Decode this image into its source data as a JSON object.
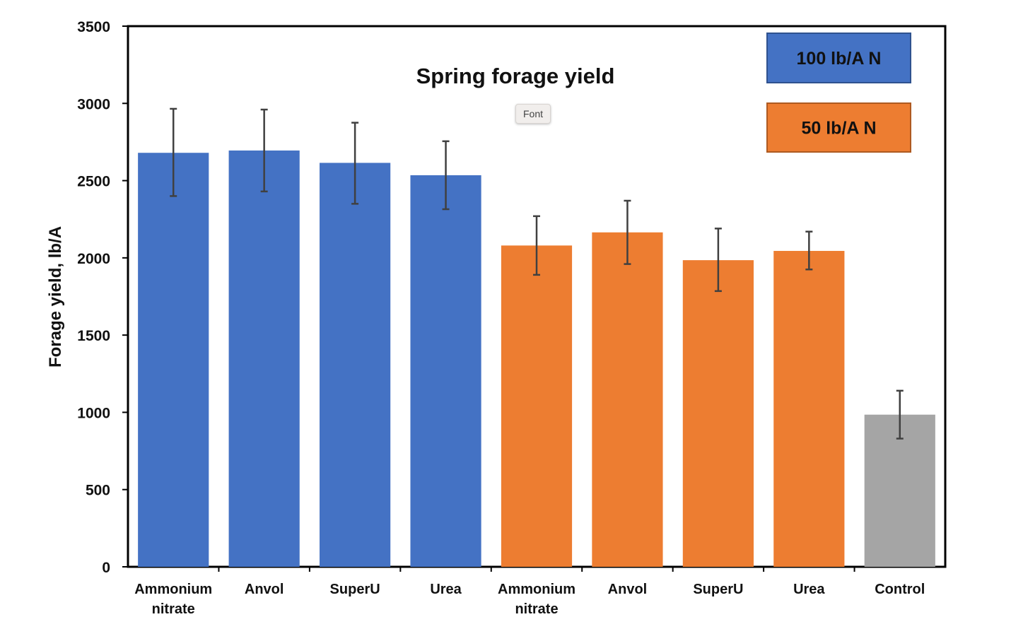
{
  "chart_data": {
    "type": "bar",
    "title": "Spring forage yield",
    "ylabel": "Forage yield, lb/A",
    "xlabel": "",
    "ylim": [
      0,
      3500
    ],
    "yticks": [
      0,
      500,
      1000,
      1500,
      2000,
      2500,
      3000,
      3500
    ],
    "categories": [
      [
        "Ammonium",
        "nitrate"
      ],
      [
        "Anvol"
      ],
      [
        "SuperU"
      ],
      [
        "Urea"
      ],
      [
        "Ammonium",
        "nitrate"
      ],
      [
        "Anvol"
      ],
      [
        "SuperU"
      ],
      [
        "Urea"
      ],
      [
        "Control"
      ]
    ],
    "values": [
      2680,
      2695,
      2615,
      2535,
      2080,
      2165,
      1985,
      2045,
      985
    ],
    "error_low": [
      2400,
      2430,
      2350,
      2315,
      1890,
      1960,
      1785,
      1925,
      830
    ],
    "error_high": [
      2965,
      2960,
      2875,
      2755,
      2270,
      2370,
      2190,
      2170,
      1140
    ],
    "bar_groups": [
      "100",
      "100",
      "100",
      "100",
      "50",
      "50",
      "50",
      "50",
      "control"
    ],
    "colors": {
      "100": "#4472c4",
      "50": "#ed7d31",
      "control": "#a5a5a5"
    },
    "legend": [
      {
        "label": "100 lb/A N",
        "color": "#4472c4",
        "border": "#2f528f"
      },
      {
        "label": "50 lb/A N",
        "color": "#ed7d31",
        "border": "#ae5a21"
      }
    ],
    "legend_position": "top-right",
    "grid": false
  },
  "tooltip": {
    "text": "Font"
  }
}
